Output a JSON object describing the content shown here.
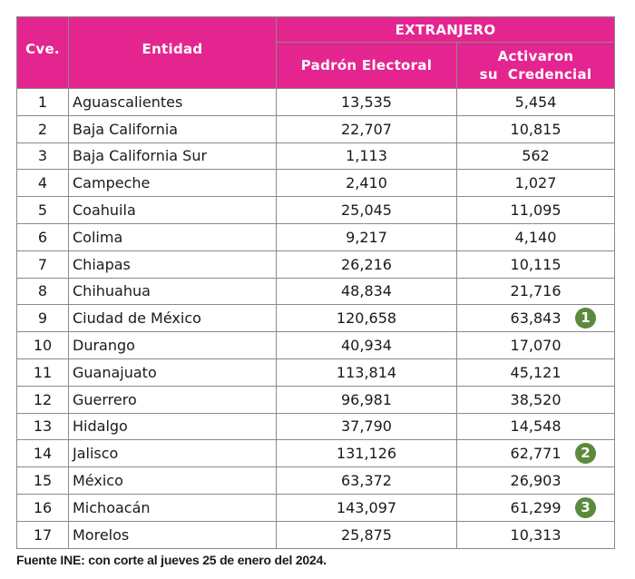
{
  "header": {
    "cve": "Cve.",
    "entidad": "Entidad",
    "group": "EXTRANJERO",
    "padron": "Padrón Electoral",
    "activaron_line1": "Activaron",
    "activaron_line2": "su  Credencial"
  },
  "rows": [
    {
      "cve": "1",
      "entidad": "Aguascalientes",
      "padron": "13,535",
      "activaron": "5,454"
    },
    {
      "cve": "2",
      "entidad": "Baja California",
      "padron": "22,707",
      "activaron": "10,815"
    },
    {
      "cve": "3",
      "entidad": "Baja California Sur",
      "padron": "1,113",
      "activaron": "562"
    },
    {
      "cve": "4",
      "entidad": "Campeche",
      "padron": "2,410",
      "activaron": "1,027"
    },
    {
      "cve": "5",
      "entidad": "Coahuila",
      "padron": "25,045",
      "activaron": "11,095"
    },
    {
      "cve": "6",
      "entidad": "Colima",
      "padron": "9,217",
      "activaron": "4,140"
    },
    {
      "cve": "7",
      "entidad": "Chiapas",
      "padron": "26,216",
      "activaron": "10,115"
    },
    {
      "cve": "8",
      "entidad": "Chihuahua",
      "padron": "48,834",
      "activaron": "21,716"
    },
    {
      "cve": "9",
      "entidad": "Ciudad de México",
      "padron": "120,658",
      "activaron": "63,843",
      "badge": "1"
    },
    {
      "cve": "10",
      "entidad": "Durango",
      "padron": "40,934",
      "activaron": "17,070"
    },
    {
      "cve": "11",
      "entidad": "Guanajuato",
      "padron": "113,814",
      "activaron": "45,121"
    },
    {
      "cve": "12",
      "entidad": "Guerrero",
      "padron": "96,981",
      "activaron": "38,520"
    },
    {
      "cve": "13",
      "entidad": "Hidalgo",
      "padron": "37,790",
      "activaron": "14,548"
    },
    {
      "cve": "14",
      "entidad": "Jalisco",
      "padron": "131,126",
      "activaron": "62,771",
      "badge": "2"
    },
    {
      "cve": "15",
      "entidad": "México",
      "padron": "63,372",
      "activaron": "26,903"
    },
    {
      "cve": "16",
      "entidad": "Michoacán",
      "padron": "143,097",
      "activaron": "61,299",
      "badge": "3"
    },
    {
      "cve": "17",
      "entidad": "Morelos",
      "padron": "25,875",
      "activaron": "10,313"
    }
  ],
  "colors": {
    "header_bg": "#e5258f",
    "badge_bg": "#5c8a3c"
  },
  "footnote": "Fuente INE: con corte al jueves 25 de enero del 2024."
}
